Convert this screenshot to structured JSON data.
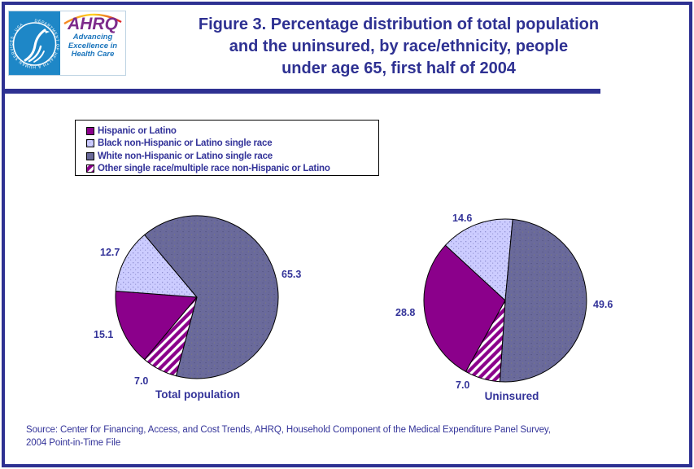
{
  "colors": {
    "navy": "#2E3192",
    "text-navy": "#333399",
    "magenta": "#8B008B",
    "lavender": "#CCCCFF",
    "slate": "#6A6A9B",
    "stripe-white": "#FFFFFF",
    "logo-blue": "#1E87C7",
    "ahrq-purple": "#7D2B8B",
    "tagline-blue": "#1B75BC"
  },
  "header": {
    "logo": {
      "agency": "AHRQ",
      "seal_text": "DEPARTMENT OF HEALTH & HUMAN SERVICES · USA",
      "tagline_lines": [
        "Advancing",
        "Excellence in",
        "Health Care"
      ]
    },
    "title_lines": [
      "Figure 3. Percentage distribution of total population",
      "and the uninsured, by race/ethnicity, people",
      "under age 65, first half of 2004"
    ]
  },
  "legend": {
    "items": [
      {
        "label": "Hispanic or Latino",
        "fill": "solid-magenta"
      },
      {
        "label": "Black non-Hispanic or Latino single race",
        "fill": "dot-lavender"
      },
      {
        "label": "White non-Hispanic or Latino single race",
        "fill": "speckle-slate"
      },
      {
        "label": "Other single race/multiple race non-Hispanic or Latino",
        "fill": "hatch-white-on-magenta"
      }
    ]
  },
  "chart_data": [
    {
      "type": "pie",
      "title": "Total population",
      "categories": [
        "Hispanic or Latino",
        "Black non-Hispanic or Latino single race",
        "White non-Hispanic or Latino single race",
        "Other single race/multiple race non-Hispanic or Latino"
      ],
      "values": [
        15.1,
        12.7,
        65.3,
        7.0
      ],
      "point_labels": [
        "15.1",
        "12.7",
        "65.3",
        "7.0"
      ],
      "start_angle_deg": 220,
      "direction": "clockwise",
      "legend_position": "top-left-box"
    },
    {
      "type": "pie",
      "title": "Uninsured",
      "categories": [
        "Hispanic or Latino",
        "Black non-Hispanic or Latino single race",
        "White non-Hispanic or Latino single race",
        "Other single race/multiple race non-Hispanic or Latino"
      ],
      "values": [
        28.8,
        14.6,
        49.6,
        7.0
      ],
      "point_labels": [
        "28.8",
        "14.6",
        "49.6",
        "7.0"
      ],
      "start_angle_deg": 209,
      "direction": "clockwise",
      "legend_position": "top-left-box"
    }
  ],
  "footer": {
    "source_lines": [
      "Source: Center for Financing, Access, and Cost Trends, AHRQ, Household Component of the Medical Expenditure Panel Survey,",
      "2004 Point-in-Time File"
    ]
  }
}
